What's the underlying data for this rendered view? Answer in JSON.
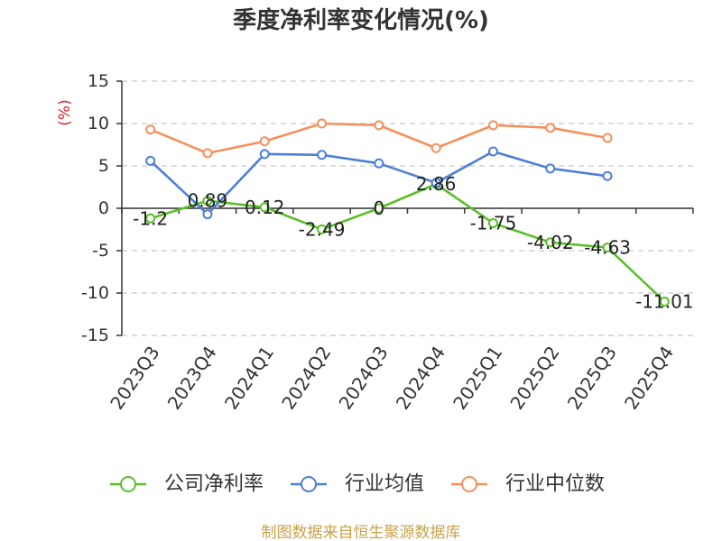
{
  "chart_data": {
    "type": "line",
    "title": "季度净利率变化情况(%)",
    "ylabel": "(%)",
    "categories": [
      "2023Q3",
      "2023Q4",
      "2024Q1",
      "2024Q2",
      "2024Q3",
      "2024Q4",
      "2025Q1",
      "2025Q2",
      "2025Q3",
      "2025Q4"
    ],
    "ylim": [
      -15,
      15
    ],
    "yticks": [
      -15,
      -10,
      -5,
      0,
      5,
      10,
      15
    ],
    "grid": true,
    "legend": "bottom",
    "series": [
      {
        "name": "公司净利率",
        "color": "#5cbf2a",
        "data_labels": true,
        "values": [
          -1.2,
          0.89,
          0.12,
          -2.49,
          0,
          2.86,
          -1.75,
          -4.02,
          -4.63,
          -11.01
        ]
      },
      {
        "name": "行业均值",
        "color": "#4d7fd9",
        "data_labels": false,
        "values": [
          5.6,
          -0.7,
          6.4,
          6.3,
          5.3,
          3.0,
          6.7,
          4.7,
          3.8,
          null
        ]
      },
      {
        "name": "行业中位数",
        "color": "#f5905c",
        "data_labels": false,
        "values": [
          9.3,
          6.5,
          7.9,
          10.0,
          9.8,
          7.1,
          9.8,
          9.5,
          8.3,
          null
        ]
      }
    ]
  },
  "footer": {
    "source": "制图数据来自恒生聚源数据库"
  }
}
